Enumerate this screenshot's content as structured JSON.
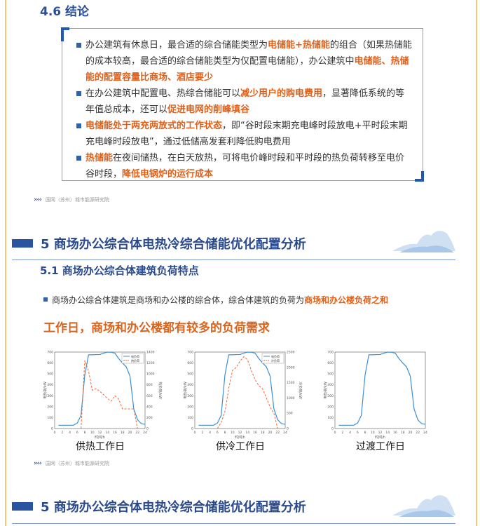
{
  "section46": {
    "title": "4.6 结论",
    "bullets": [
      {
        "parts": [
          {
            "t": "办公建筑有休息日，最合适的综合储能类型为",
            "h": false
          },
          {
            "t": "电储能+热储能",
            "h": true
          },
          {
            "t": "的组合（如果热储能的成本较高，最合适的综合储能类型为仅配置电储能），办公建筑中",
            "h": false
          },
          {
            "t": "电储能、热储能的配置容量比商场、酒店要少",
            "h": true
          }
        ]
      },
      {
        "parts": [
          {
            "t": "在办公建筑中配置电、热综合储能可以",
            "h": false
          },
          {
            "t": "减少用户的购电费用",
            "h": true
          },
          {
            "t": "，显著降低系统的等年值总成本，还可以",
            "h": false
          },
          {
            "t": "促进电网的削峰填谷",
            "h": true
          }
        ]
      },
      {
        "parts": [
          {
            "t": "电储能处于两充两放式的工作状态",
            "h": true
          },
          {
            "t": "，即“谷时段末期充电峰时段放电+平时段末期充电峰时段放电”，通过低储高发套利降低购电费用",
            "h": false
          }
        ]
      },
      {
        "parts": [
          {
            "t": "热储能",
            "h": true
          },
          {
            "t": "在夜间储热，在白天放热，可将电价峰时段和平时段的热负荷转移至电价谷时段，",
            "h": false
          },
          {
            "t": "降低电锅炉的运行成本",
            "h": true
          }
        ]
      }
    ]
  },
  "footer": {
    "chevrons": "››››",
    "org": "国网（苏州）城市能源研究院"
  },
  "section5": {
    "title": "5 商场办公综合体电热冷综合储能优化配置分析",
    "sub_title": "5.1 商场办公综合体建筑负荷特点",
    "bullet_pre": "商场办公综合体建筑是商场和办公楼的综合体，综合体建筑的负荷为",
    "bullet_hl": "商场和办公楼负荷之和",
    "highlight": "工作日，商场和办公楼都有较多的负荷需求"
  },
  "colors": {
    "accent": "#2a4a8c",
    "highlight": "#e0601a",
    "electric": "#3b8fd6",
    "thermal": "#f26a3a"
  },
  "chart_data": [
    {
      "type": "line",
      "caption": "供热工作日",
      "xlabel": "时间/h",
      "ylabel": "电负荷/kW",
      "y2label": "热负荷/kW",
      "x": [
        1,
        2,
        3,
        4,
        5,
        6,
        7,
        8,
        9,
        10,
        11,
        12,
        13,
        14,
        15,
        16,
        17,
        18,
        19,
        20,
        21,
        22,
        23,
        24
      ],
      "xlim": [
        0,
        24
      ],
      "xticks": [
        0,
        2,
        4,
        6,
        8,
        10,
        12,
        14,
        16,
        18,
        20,
        22,
        24
      ],
      "ylim": [
        0,
        700
      ],
      "yticks": [
        0,
        100,
        200,
        300,
        400,
        500,
        600,
        700
      ],
      "y2lim": [
        0,
        1400
      ],
      "y2ticks": [
        0,
        200,
        400,
        600,
        800,
        1000,
        1200,
        1400
      ],
      "series": [
        {
          "name": "电负荷",
          "axis": "left",
          "style": "solid",
          "values": [
            30,
            30,
            30,
            30,
            30,
            50,
            120,
            490,
            675,
            675,
            677,
            678,
            690,
            700,
            698,
            690,
            640,
            600,
            565,
            480,
            180,
            80,
            45,
            38
          ]
        },
        {
          "name": "热负荷",
          "axis": "right",
          "style": "dashed",
          "x": [
            7,
            8,
            9,
            10,
            11,
            12,
            13,
            14,
            15,
            16,
            17,
            18,
            19,
            20,
            21,
            22
          ],
          "values": [
            0,
            1250,
            1050,
            700,
            730,
            680,
            620,
            550,
            500,
            600,
            540,
            360,
            360,
            360,
            360,
            0
          ]
        }
      ]
    },
    {
      "type": "line",
      "caption": "供冷工作日",
      "xlabel": "时间/h",
      "ylabel": "电负荷/kW",
      "y2label": "冷负荷/kW",
      "x": [
        1,
        2,
        3,
        4,
        5,
        6,
        7,
        8,
        9,
        10,
        11,
        12,
        13,
        14,
        15,
        16,
        17,
        18,
        19,
        20,
        21,
        22,
        23,
        24
      ],
      "xlim": [
        0,
        24
      ],
      "xticks": [
        0,
        2,
        4,
        6,
        8,
        10,
        12,
        14,
        16,
        18,
        20,
        22,
        24
      ],
      "ylim": [
        0,
        700
      ],
      "yticks": [
        0,
        100,
        200,
        300,
        400,
        500,
        600,
        700
      ],
      "y2lim": [
        0,
        2500
      ],
      "y2ticks": [
        0,
        500,
        1000,
        1500,
        2000,
        2500
      ],
      "series": [
        {
          "name": "电负荷",
          "axis": "left",
          "style": "solid",
          "values": [
            30,
            30,
            30,
            30,
            30,
            50,
            120,
            490,
            675,
            675,
            677,
            678,
            690,
            700,
            698,
            690,
            640,
            600,
            565,
            480,
            180,
            80,
            45,
            38
          ]
        },
        {
          "name": "冷负荷",
          "axis": "right",
          "style": "dashed",
          "x": [
            6,
            7,
            8,
            9,
            10,
            11,
            12,
            13,
            14,
            15,
            16,
            17,
            18,
            19,
            20,
            21,
            22
          ],
          "values": [
            0,
            200,
            550,
            1300,
            1900,
            2000,
            2200,
            2350,
            2250,
            1900,
            1600,
            1400,
            1300,
            1000,
            700,
            500,
            0
          ]
        }
      ]
    },
    {
      "type": "line",
      "caption": "过渡工作日",
      "xlabel": "时间/h",
      "ylabel": "电负荷/kW",
      "x": [
        1,
        2,
        3,
        4,
        5,
        6,
        7,
        8,
        9,
        10,
        11,
        12,
        13,
        14,
        15,
        16,
        17,
        18,
        19,
        20,
        21,
        22,
        23,
        24
      ],
      "xlim": [
        0,
        24
      ],
      "xticks": [
        0,
        2,
        4,
        6,
        8,
        10,
        12,
        14,
        16,
        18,
        20,
        22,
        24
      ],
      "ylim": [
        0,
        700
      ],
      "yticks": [
        0,
        100,
        200,
        300,
        400,
        500,
        600,
        700
      ],
      "series": [
        {
          "name": "电负荷",
          "axis": "left",
          "style": "solid",
          "values": [
            30,
            30,
            30,
            30,
            30,
            50,
            120,
            490,
            675,
            675,
            677,
            678,
            690,
            700,
            698,
            690,
            640,
            600,
            565,
            480,
            180,
            80,
            45,
            38
          ]
        }
      ]
    }
  ]
}
